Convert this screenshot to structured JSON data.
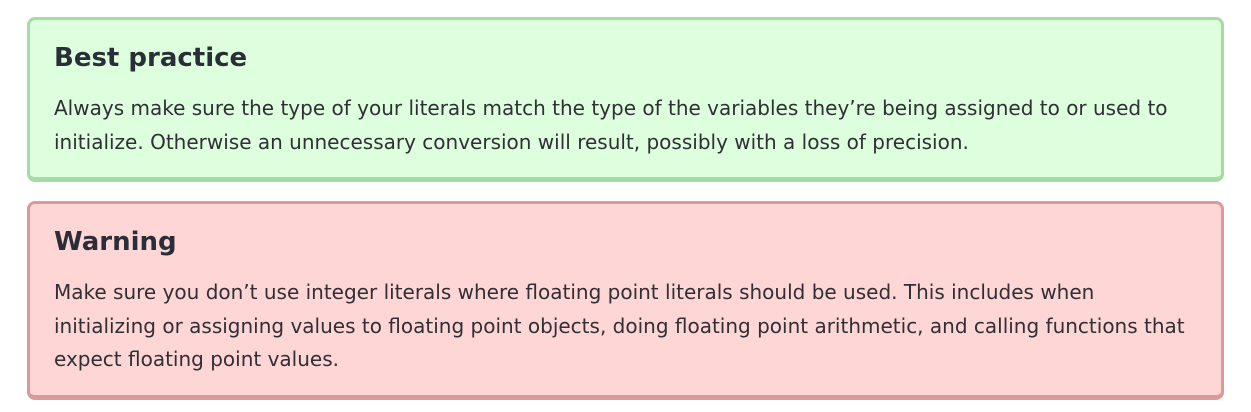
{
  "best_practice": {
    "title": "Best practice",
    "text": "Always make sure the type of your literals match the type of the variables they’re being assigned to or used to initialize. Otherwise an unnecessary conversion will result, possibly with a loss of precision.",
    "background": "#ddffdd",
    "border": "#a5dba5"
  },
  "warning": {
    "title": "Warning",
    "text": "Make sure you don’t use integer literals where floating point literals should be used. This includes when initializing or assigning values to floating point objects, doing floating point arithmetic, and calling functions that expect floating point values.",
    "background": "#ffd6d6",
    "border": "#d99a9a"
  }
}
